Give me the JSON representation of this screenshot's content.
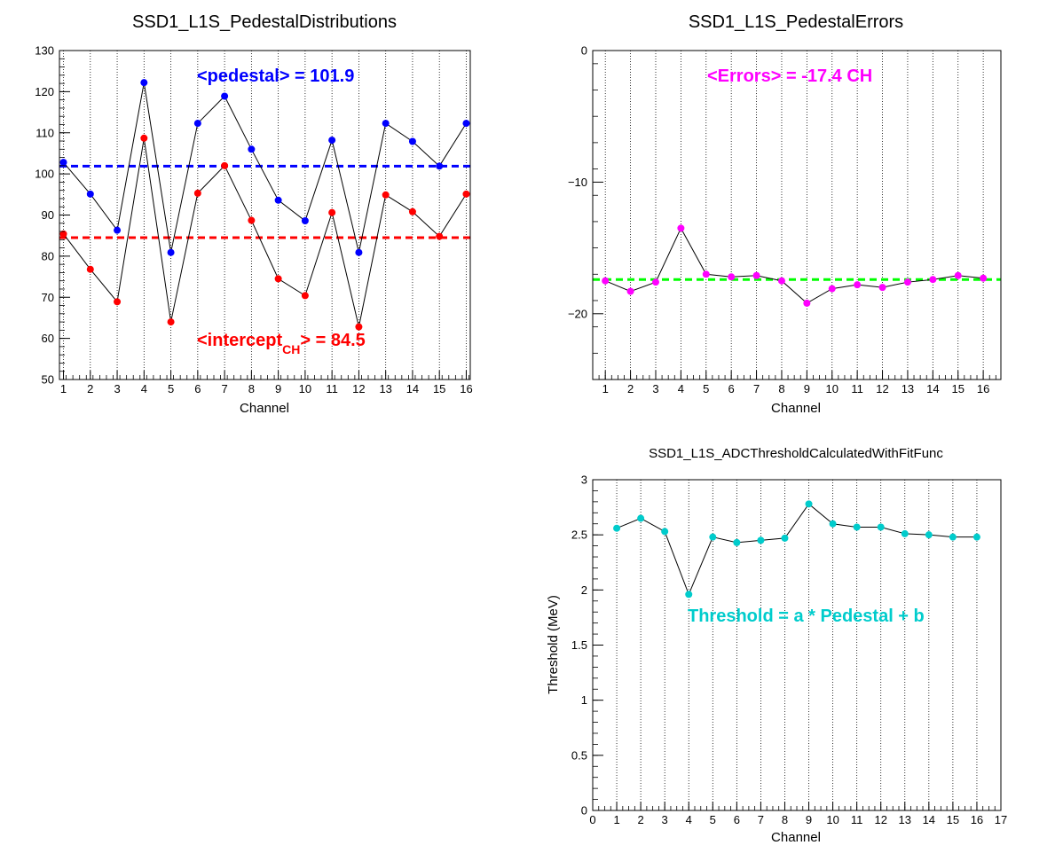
{
  "chart_data": [
    {
      "type": "scatter",
      "title": "SSD1_L1S_PedestalDistributions",
      "xlabel": "Channel",
      "ylabel": "",
      "xlim": [
        0.85,
        16.15
      ],
      "ylim": [
        50,
        130
      ],
      "xticks": [
        1,
        2,
        3,
        4,
        5,
        6,
        7,
        8,
        9,
        10,
        11,
        12,
        13,
        14,
        15,
        16
      ],
      "yticks": [
        50,
        60,
        70,
        80,
        90,
        100,
        110,
        120,
        130
      ],
      "grid": "vertical-dotted",
      "series": [
        {
          "color": "#0000ff",
          "x": [
            1,
            2,
            3,
            4,
            5,
            6,
            7,
            8,
            9,
            10,
            11,
            12,
            13,
            14,
            15,
            16
          ],
          "values": [
            102.8,
            95.1,
            86.3,
            122.2,
            80.9,
            112.3,
            118.9,
            106.0,
            93.6,
            88.6,
            108.2,
            80.9,
            112.3,
            107.9,
            101.9,
            112.3
          ]
        },
        {
          "color": "#ff0000",
          "x": [
            1,
            2,
            3,
            4,
            5,
            6,
            7,
            8,
            9,
            10,
            11,
            12,
            13,
            14,
            15,
            16
          ],
          "values": [
            85.4,
            76.8,
            68.9,
            108.7,
            64.0,
            95.3,
            102.0,
            88.7,
            74.5,
            70.4,
            90.6,
            62.8,
            94.9,
            90.8,
            84.8,
            95.1
          ]
        }
      ],
      "reference_lines": [
        {
          "y": 101.9,
          "color": "#0000ff"
        },
        {
          "y": 84.5,
          "color": "#ff0000"
        }
      ],
      "annotations": [
        {
          "text": "<pedestal> = 101.9",
          "color": "#0000ff"
        },
        {
          "text_main": "<intercept",
          "text_sub": "CH",
          "text_tail": "> = 84.5",
          "color": "#ff0000"
        }
      ]
    },
    {
      "type": "scatter",
      "title": "SSD1_L1S_PedestalErrors",
      "xlabel": "Channel",
      "ylabel": "",
      "xlim": [
        0.5,
        16.7
      ],
      "ylim": [
        -25,
        0
      ],
      "xticks": [
        1,
        2,
        3,
        4,
        5,
        6,
        7,
        8,
        9,
        10,
        11,
        12,
        13,
        14,
        15,
        16
      ],
      "yticks": [
        0,
        -10,
        -20
      ],
      "grid": "vertical-dotted",
      "series": [
        {
          "color": "#ff00ff",
          "x": [
            1,
            2,
            3,
            4,
            5,
            6,
            7,
            8,
            9,
            10,
            11,
            12,
            13,
            14,
            15,
            16
          ],
          "values": [
            -17.5,
            -18.3,
            -17.6,
            -13.5,
            -17.0,
            -17.2,
            -17.1,
            -17.5,
            -19.2,
            -18.1,
            -17.8,
            -18.0,
            -17.6,
            -17.4,
            -17.1,
            -17.3
          ]
        }
      ],
      "reference_lines": [
        {
          "y": -17.4,
          "color": "#00ff00"
        }
      ],
      "annotations": [
        {
          "text": "<Errors> = -17.4 CH",
          "color": "#ff00ff"
        }
      ]
    },
    {
      "type": "scatter",
      "title": "SSD1_L1S_ADCThresholdCalculatedWithFitFunc",
      "xlabel": "Channel",
      "ylabel": "Threshold (MeV)",
      "xlim": [
        0,
        17
      ],
      "ylim": [
        0,
        3
      ],
      "xticks": [
        0,
        1,
        2,
        3,
        4,
        5,
        6,
        7,
        8,
        9,
        10,
        11,
        12,
        13,
        14,
        15,
        16,
        17
      ],
      "yticks": [
        0,
        0.5,
        1,
        1.5,
        2,
        2.5,
        3
      ],
      "grid": "vertical-dotted",
      "series": [
        {
          "color": "#00cccc",
          "x": [
            1,
            2,
            3,
            4,
            5,
            6,
            7,
            8,
            9,
            10,
            11,
            12,
            13,
            14,
            15,
            16
          ],
          "values": [
            2.56,
            2.65,
            2.53,
            1.96,
            2.48,
            2.43,
            2.45,
            2.47,
            2.78,
            2.6,
            2.57,
            2.57,
            2.51,
            2.5,
            2.48,
            2.48
          ]
        }
      ],
      "reference_lines": [],
      "annotations": [
        {
          "text": "Threshold = a * Pedestal + b",
          "color": "#00cccc"
        }
      ]
    }
  ]
}
